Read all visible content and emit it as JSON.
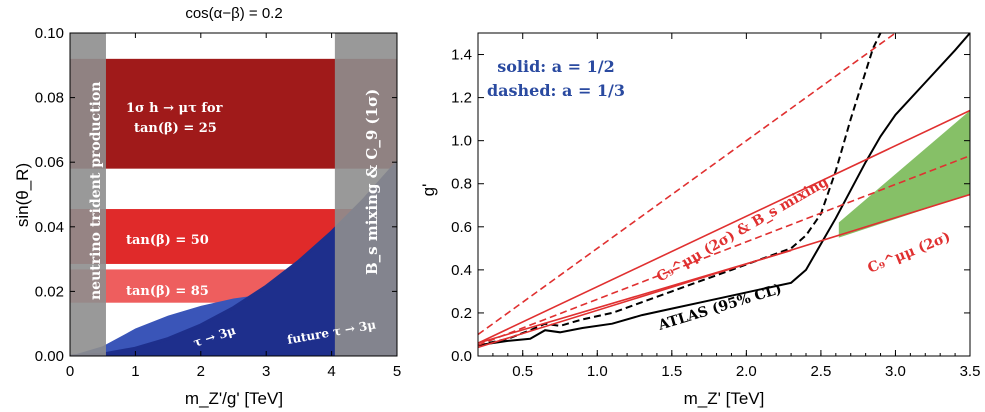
{
  "chart_data": [
    {
      "type": "area",
      "title": "cos(α−β) = 0.2",
      "xlabel": "m_Z'/g' [TeV]",
      "ylabel": "sin(θ_R)",
      "xlim": [
        0,
        5
      ],
      "ylim": [
        0,
        0.1
      ],
      "x_ticks": [
        "0",
        "1",
        "2",
        "3",
        "4",
        "5"
      ],
      "y_ticks": [
        "0.00",
        "0.02",
        "0.04",
        "0.06",
        "0.08",
        "0.10"
      ],
      "grey_bands": [
        {
          "label": "neutrino trident production",
          "x_range": [
            0,
            0.55
          ]
        },
        {
          "label": "B_s mixing & C_9 (1σ)",
          "x_range": [
            4.05,
            5
          ]
        }
      ],
      "h_to_mu_tau_bands": [
        {
          "label_line1": "1σ h → μτ for",
          "label_line2": "tan(β) = 25",
          "y_range": [
            0.058,
            0.092
          ],
          "color": "#a01a1a"
        },
        {
          "label_line1": "",
          "label_line2": "tan(β) = 50",
          "y_range": [
            0.0285,
            0.0455
          ],
          "color": "#e02a2a"
        },
        {
          "label_line1": "",
          "label_line2": "tan(β) = 85",
          "y_range": [
            0.0165,
            0.0268
          ],
          "color": "#ee5e5e"
        }
      ],
      "tau_to_3mu": {
        "label": "τ → 3μ",
        "boundary_x": [
          0,
          0.5,
          1,
          1.5,
          2,
          2.5,
          3,
          3.5,
          4,
          4.5,
          5
        ],
        "boundary_y": [
          0,
          0.0006,
          0.0024,
          0.0054,
          0.0096,
          0.015,
          0.0216,
          0.0294,
          0.0384,
          0.0486,
          0.06
        ]
      },
      "future_tau_to_3mu": {
        "label": "future τ → 3μ",
        "boundary_x": [
          0,
          0.5,
          1,
          1.5,
          2,
          2.5,
          3,
          3.5,
          4,
          5
        ],
        "boundary_y": [
          0,
          0.003,
          0.0085,
          0.0125,
          0.0155,
          0.0178,
          0.0192,
          0.0203,
          0.021,
          0.021
        ]
      }
    },
    {
      "type": "line",
      "title": "",
      "xlabel": "m_Z' [TeV]",
      "ylabel": "g'",
      "xlim": [
        0.2,
        3.5
      ],
      "ylim": [
        0,
        1.5
      ],
      "x_ticks": [
        "0.5",
        "1.0",
        "1.5",
        "2.0",
        "2.5",
        "3.0",
        "3.5"
      ],
      "y_ticks": [
        "0.0",
        "0.2",
        "0.4",
        "0.6",
        "0.8",
        "1.0",
        "1.2",
        "1.4"
      ],
      "legend_text": {
        "line1": "solid: a = 1/2",
        "line2": "dashed: a = 1/3"
      },
      "annotations": {
        "atlas": "ATLAS (95% CL)",
        "c9_bs": "C₉^μμ (2σ) & B_s mixing",
        "c9": "C₉^μμ (2σ)"
      },
      "series": [
        {
          "name": "ATLAS (95% CL)",
          "style": "solid",
          "color": "#000000",
          "x": [
            0.2,
            0.4,
            0.55,
            0.65,
            0.75,
            0.9,
            1.1,
            1.3,
            1.5,
            1.7,
            1.9,
            2.1,
            2.3,
            2.4,
            2.5,
            2.6,
            2.7,
            2.8,
            2.9,
            3.0,
            3.2,
            3.4,
            3.5
          ],
          "y": [
            0.05,
            0.07,
            0.08,
            0.12,
            0.11,
            0.13,
            0.15,
            0.19,
            0.22,
            0.25,
            0.28,
            0.31,
            0.34,
            0.4,
            0.52,
            0.64,
            0.77,
            0.9,
            1.02,
            1.12,
            1.27,
            1.42,
            1.5
          ]
        },
        {
          "name": "",
          "style": "dashed",
          "color": "#000000",
          "x": [
            0.2,
            0.4,
            0.55,
            0.65,
            0.75,
            0.9,
            1.1,
            1.3,
            1.5,
            1.7,
            1.9,
            2.1,
            2.3,
            2.4,
            2.5,
            2.6,
            2.7,
            2.8,
            2.85,
            2.9
          ],
          "y": [
            0.05,
            0.08,
            0.12,
            0.15,
            0.14,
            0.17,
            0.2,
            0.25,
            0.3,
            0.35,
            0.4,
            0.45,
            0.5,
            0.56,
            0.66,
            0.86,
            1.1,
            1.32,
            1.43,
            1.5
          ]
        },
        {
          "name": "",
          "style": "solid",
          "color": "#e03030",
          "x": [
            0.2,
            3.5
          ],
          "y": [
            0.06,
            1.14
          ]
        },
        {
          "name": "",
          "style": "solid",
          "color": "#e03030",
          "x": [
            0.2,
            3.5
          ],
          "y": [
            0.04,
            0.75
          ]
        },
        {
          "name": "",
          "style": "dashed",
          "color": "#e03030",
          "x": [
            0.2,
            3.0
          ],
          "y": [
            0.1,
            1.5
          ]
        },
        {
          "name": "",
          "style": "dashed",
          "color": "#e03030",
          "x": [
            0.2,
            3.5
          ],
          "y": [
            0.05,
            0.93
          ]
        },
        {
          "name": "",
          "style": "solid",
          "color": "#e03030",
          "x": [
            0.2,
            2.3
          ],
          "y": [
            0.06,
            0.49
          ]
        }
      ],
      "green_region": {
        "color": "#86c067",
        "x": [
          2.62,
          3.5
        ],
        "upper": [
          0.62,
          1.14
        ],
        "lower": [
          0.55,
          0.75
        ]
      }
    }
  ]
}
